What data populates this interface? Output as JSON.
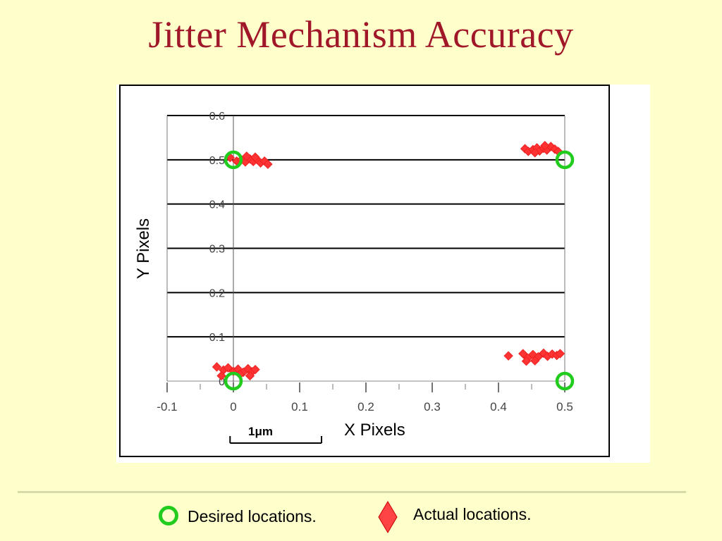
{
  "title": "Jitter Mechanism Accuracy",
  "chart_data": {
    "type": "scatter",
    "xlabel": "X Pixels",
    "ylabel": "Y Pixels",
    "xlim": [
      -0.1,
      0.5
    ],
    "ylim": [
      0,
      0.6
    ],
    "x_ticks": [
      "-0.1",
      "0",
      "0.1",
      "0.2",
      "0.3",
      "0.4",
      "0.5"
    ],
    "y_ticks": [
      "0",
      "0.1",
      "0.2",
      "0.3",
      "0.4",
      "0.5",
      "0.6"
    ],
    "grid": "horizontal",
    "series": [
      {
        "name": "Desired locations.",
        "marker": "circle",
        "color": "#22cc1e",
        "points": [
          [
            0,
            0.5
          ],
          [
            0.5,
            0.5
          ],
          [
            0,
            0
          ],
          [
            0.5,
            0
          ]
        ]
      },
      {
        "name": "Actual locations.",
        "marker": "diamond",
        "color": "#ff3333",
        "points": [
          [
            -0.005,
            0.505
          ],
          [
            0.005,
            0.497
          ],
          [
            0.012,
            0.5
          ],
          [
            0.018,
            0.495
          ],
          [
            0.025,
            0.502
          ],
          [
            0.03,
            0.496
          ],
          [
            0.036,
            0.5
          ],
          [
            0.041,
            0.493
          ],
          [
            0.047,
            0.497
          ],
          [
            0.052,
            0.49
          ],
          [
            0.02,
            0.508
          ],
          [
            0.033,
            0.506
          ],
          [
            0.44,
            0.525
          ],
          [
            0.445,
            0.519
          ],
          [
            0.452,
            0.523
          ],
          [
            0.458,
            0.527
          ],
          [
            0.462,
            0.52
          ],
          [
            0.468,
            0.526
          ],
          [
            0.473,
            0.522
          ],
          [
            0.479,
            0.53
          ],
          [
            0.485,
            0.524
          ],
          [
            0.49,
            0.519
          ],
          [
            0.47,
            0.532
          ],
          [
            0.455,
            0.516
          ],
          [
            -0.025,
            0.032
          ],
          [
            -0.015,
            0.025
          ],
          [
            -0.008,
            0.03
          ],
          [
            0.0,
            0.022
          ],
          [
            0.007,
            0.027
          ],
          [
            0.015,
            0.02
          ],
          [
            0.022,
            0.028
          ],
          [
            0.028,
            0.021
          ],
          [
            0.033,
            0.026
          ],
          [
            0.01,
            0.015
          ],
          [
            -0.018,
            0.012
          ],
          [
            0.025,
            0.012
          ],
          [
            0.415,
            0.057
          ],
          [
            0.437,
            0.062
          ],
          [
            0.444,
            0.052
          ],
          [
            0.452,
            0.06
          ],
          [
            0.46,
            0.055
          ],
          [
            0.468,
            0.063
          ],
          [
            0.474,
            0.056
          ],
          [
            0.481,
            0.061
          ],
          [
            0.488,
            0.058
          ],
          [
            0.493,
            0.062
          ],
          [
            0.455,
            0.046
          ],
          [
            0.442,
            0.045
          ]
        ]
      }
    ],
    "annotation": "1μm"
  },
  "legend": {
    "desired": "Desired locations.",
    "actual": "Actual locations."
  }
}
